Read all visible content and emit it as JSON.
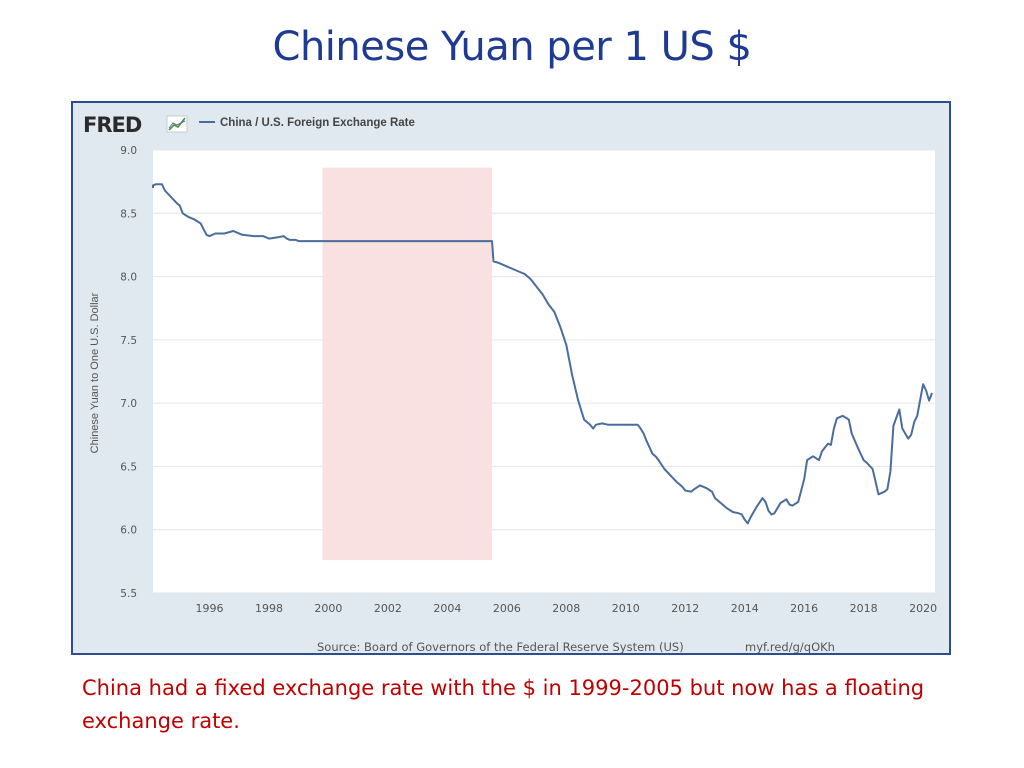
{
  "slide": {
    "title": "Chinese Yuan per 1 US $",
    "caption": "China had a fixed exchange rate with the $ in 1999-2005 but now has a floating exchange rate."
  },
  "chart_data": {
    "type": "line",
    "brand": "FRED",
    "legend": "China / U.S. Foreign Exchange Rate",
    "ylabel": "Chinese Yuan to One U.S. Dollar",
    "xlabel": "",
    "source": "Source: Board of Governors of the Federal Reserve System (US)",
    "short_url": "myf.red/g/qOKh",
    "ylim": [
      5.5,
      9.0
    ],
    "xlim": [
      1994.1,
      2020.4
    ],
    "y_ticks": [
      "5.5",
      "6.0",
      "6.5",
      "7.0",
      "7.5",
      "8.0",
      "8.5",
      "9.0"
    ],
    "x_ticks": [
      "1996",
      "1998",
      "2000",
      "2002",
      "2004",
      "2006",
      "2008",
      "2010",
      "2012",
      "2014",
      "2016",
      "2018",
      "2020"
    ],
    "grid": true,
    "highlight": {
      "label": "fixed exchange rate period",
      "x_start": 1999.8,
      "x_end": 2005.5,
      "y_start": 5.76,
      "y_end": 8.86,
      "color": "#f9e1e1"
    },
    "line_color": "#4a6d9e",
    "series": [
      {
        "name": "China / U.S. Foreign Exchange Rate",
        "x": [
          1994.0,
          1994.1,
          1994.2,
          1994.4,
          1994.5,
          1994.7,
          1994.9,
          1995.0,
          1995.1,
          1995.3,
          1995.5,
          1995.7,
          1995.9,
          1996.0,
          1996.2,
          1996.5,
          1996.8,
          1997.1,
          1997.5,
          1997.8,
          1998.0,
          1998.3,
          1998.5,
          1998.6,
          1998.7,
          1998.9,
          1999.0,
          1999.3,
          1999.5,
          1999.7,
          2000.0,
          2002.0,
          2004.0,
          2005.5,
          2005.55,
          2005.7,
          2006.0,
          2006.2,
          2006.4,
          2006.6,
          2006.8,
          2007.0,
          2007.2,
          2007.4,
          2007.6,
          2007.8,
          2008.0,
          2008.2,
          2008.4,
          2008.6,
          2008.8,
          2008.9,
          2009.0,
          2009.2,
          2009.4,
          2009.6,
          2009.8,
          2010.0,
          2010.4,
          2010.5,
          2010.6,
          2010.7,
          2010.8,
          2010.9,
          2011.0,
          2011.1,
          2011.3,
          2011.5,
          2011.7,
          2011.9,
          2012.0,
          2012.2,
          2012.3,
          2012.5,
          2012.7,
          2012.9,
          2013.0,
          2013.2,
          2013.4,
          2013.6,
          2013.8,
          2013.9,
          2014.0,
          2014.1,
          2014.2,
          2014.4,
          2014.6,
          2014.7,
          2014.8,
          2014.9,
          2015.0,
          2015.2,
          2015.4,
          2015.5,
          2015.6,
          2015.8,
          2016.0,
          2016.1,
          2016.3,
          2016.5,
          2016.6,
          2016.8,
          2016.9,
          2017.0,
          2017.1,
          2017.3,
          2017.5,
          2017.6,
          2017.8,
          2018.0,
          2018.1,
          2018.3,
          2018.5,
          2018.7,
          2018.8,
          2018.9,
          2019.0,
          2019.2,
          2019.3,
          2019.5,
          2019.6,
          2019.7,
          2019.8,
          2020.0,
          2020.1,
          2020.2,
          2020.3
        ],
        "values": [
          8.7,
          8.72,
          8.73,
          8.73,
          8.68,
          8.63,
          8.58,
          8.56,
          8.5,
          8.47,
          8.45,
          8.42,
          8.33,
          8.32,
          8.34,
          8.34,
          8.36,
          8.33,
          8.32,
          8.32,
          8.3,
          8.31,
          8.32,
          8.3,
          8.29,
          8.29,
          8.28,
          8.28,
          8.28,
          8.28,
          8.28,
          8.28,
          8.28,
          8.28,
          8.12,
          8.11,
          8.08,
          8.06,
          8.04,
          8.02,
          7.98,
          7.92,
          7.86,
          7.78,
          7.72,
          7.6,
          7.46,
          7.22,
          7.02,
          6.87,
          6.83,
          6.8,
          6.83,
          6.84,
          6.83,
          6.83,
          6.83,
          6.83,
          6.83,
          6.8,
          6.76,
          6.7,
          6.65,
          6.6,
          6.58,
          6.55,
          6.48,
          6.43,
          6.38,
          6.34,
          6.31,
          6.3,
          6.32,
          6.35,
          6.33,
          6.3,
          6.25,
          6.21,
          6.17,
          6.14,
          6.13,
          6.12,
          6.08,
          6.05,
          6.1,
          6.18,
          6.25,
          6.22,
          6.15,
          6.12,
          6.13,
          6.21,
          6.24,
          6.2,
          6.19,
          6.22,
          6.4,
          6.55,
          6.58,
          6.55,
          6.62,
          6.68,
          6.67,
          6.8,
          6.88,
          6.9,
          6.87,
          6.76,
          6.65,
          6.55,
          6.53,
          6.48,
          6.28,
          6.3,
          6.32,
          6.46,
          6.82,
          6.95,
          6.8,
          6.72,
          6.75,
          6.85,
          6.9,
          7.15,
          7.1,
          7.02,
          7.08
        ]
      }
    ]
  }
}
